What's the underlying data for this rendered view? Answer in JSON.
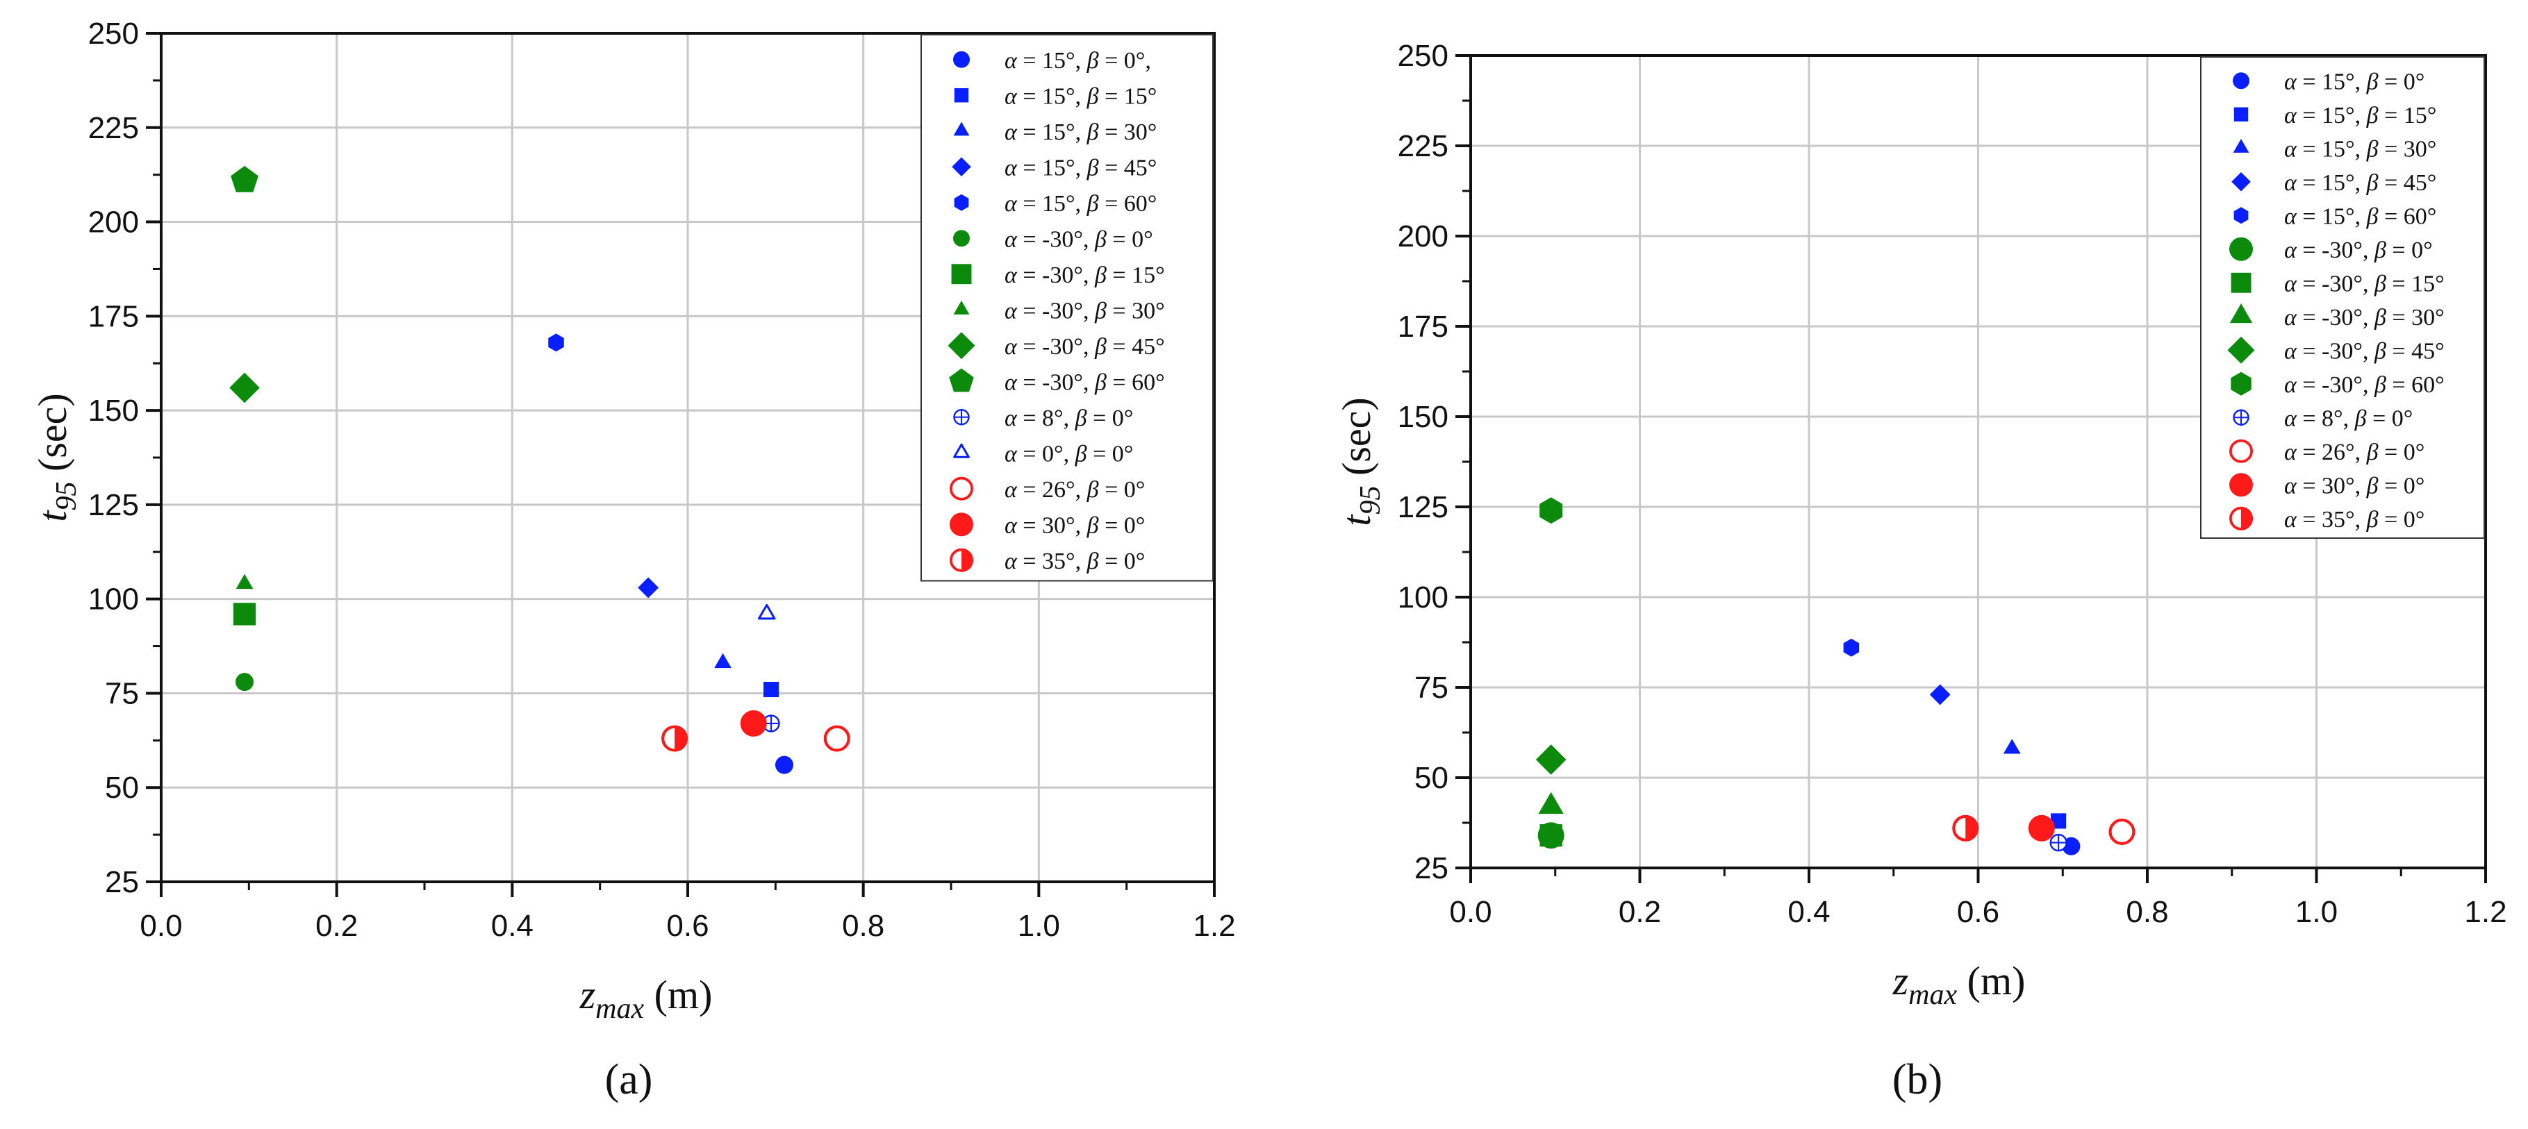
{
  "colors": {
    "blue": "#0a1fff",
    "green": "#0b8a0b",
    "red": "#ff1a1a",
    "grid": "#c8c8c8",
    "axis": "#111111"
  },
  "chart_data": [
    {
      "panel_label": "(a)",
      "type": "scatter",
      "title": "",
      "xlabel": {
        "main": "z",
        "sub": "max",
        "unit": " (m)"
      },
      "ylabel": {
        "main": "t",
        "sub": "95",
        "unit": " (sec)"
      },
      "xlim": [
        0,
        1.2
      ],
      "ylim": [
        25,
        250
      ],
      "xticks": [
        "0.0",
        "0.2",
        "0.4",
        "0.6",
        "0.8",
        "1.0",
        "1.2"
      ],
      "yticks": [
        "25",
        "50",
        "75",
        "100",
        "125",
        "150",
        "175",
        "200",
        "225",
        "250"
      ],
      "grid": true,
      "legend_position": "top-right",
      "series": [
        {
          "name": "α = 15°, β = 0°,",
          "color": "blue",
          "marker": "circle",
          "big": false,
          "x": [
            0.71
          ],
          "y": [
            56
          ]
        },
        {
          "name": "α = 15°, β = 15°",
          "color": "blue",
          "marker": "square",
          "big": false,
          "x": [
            0.695
          ],
          "y": [
            76
          ]
        },
        {
          "name": "α = 15°, β = 30°",
          "color": "blue",
          "marker": "triangle",
          "big": false,
          "x": [
            0.64
          ],
          "y": [
            83
          ]
        },
        {
          "name": "α = 15°, β = 45°",
          "color": "blue",
          "marker": "diamond",
          "big": false,
          "x": [
            0.555
          ],
          "y": [
            103
          ]
        },
        {
          "name": "α = 15°, β = 60°",
          "color": "blue",
          "marker": "hexagon",
          "big": false,
          "x": [
            0.45
          ],
          "y": [
            168
          ]
        },
        {
          "name": "α = -30°, β = 0°",
          "color": "green",
          "marker": "circle",
          "big": false,
          "x": [
            0.095
          ],
          "y": [
            78
          ]
        },
        {
          "name": "α = -30°, β = 15°",
          "color": "green",
          "marker": "square",
          "big": true,
          "x": [
            0.095
          ],
          "y": [
            96
          ]
        },
        {
          "name": "α = -30°, β = 30°",
          "color": "green",
          "marker": "triangle",
          "big": false,
          "x": [
            0.095
          ],
          "y": [
            104
          ]
        },
        {
          "name": "α = -30°, β = 45°",
          "color": "green",
          "marker": "diamond",
          "big": true,
          "x": [
            0.095
          ],
          "y": [
            156
          ]
        },
        {
          "name": "α = -30°, β = 60°",
          "color": "green",
          "marker": "pentagon",
          "big": true,
          "x": [
            0.095
          ],
          "y": [
            211
          ]
        },
        {
          "name": "α = 8°, β = 0°",
          "color": "blue",
          "marker": "circle-plus",
          "big": false,
          "x": [
            0.695
          ],
          "y": [
            67
          ]
        },
        {
          "name": "α = 0°, β = 0°",
          "color": "blue",
          "marker": "triangle-open",
          "big": false,
          "x": [
            0.69
          ],
          "y": [
            96
          ]
        },
        {
          "name": "α = 26°, β = 0°",
          "color": "red",
          "marker": "circle-open",
          "big": true,
          "x": [
            0.77
          ],
          "y": [
            63
          ]
        },
        {
          "name": "α = 30°, β = 0°",
          "color": "red",
          "marker": "circle",
          "big": true,
          "x": [
            0.675
          ],
          "y": [
            67
          ]
        },
        {
          "name": "α = 35°, β = 0°",
          "color": "red",
          "marker": "circle-half",
          "big": true,
          "x": [
            0.585
          ],
          "y": [
            63
          ]
        }
      ]
    },
    {
      "panel_label": "(b)",
      "type": "scatter",
      "title": "",
      "xlabel": {
        "main": "z",
        "sub": "max",
        "unit": " (m)"
      },
      "ylabel": {
        "main": "t",
        "sub": "95",
        "unit": " (sec)"
      },
      "xlim": [
        0,
        1.2
      ],
      "ylim": [
        25,
        250
      ],
      "xticks": [
        "0.0",
        "0.2",
        "0.4",
        "0.6",
        "0.8",
        "1.0",
        "1.2"
      ],
      "yticks": [
        "25",
        "50",
        "75",
        "100",
        "125",
        "150",
        "175",
        "200",
        "225",
        "250"
      ],
      "grid": true,
      "legend_position": "top-right",
      "series": [
        {
          "name": "α = 15°, β = 0°",
          "color": "blue",
          "marker": "circle",
          "big": false,
          "x": [
            0.71
          ],
          "y": [
            31
          ]
        },
        {
          "name": "α = 15°, β = 15°",
          "color": "blue",
          "marker": "square",
          "big": false,
          "x": [
            0.695
          ],
          "y": [
            38
          ]
        },
        {
          "name": "α = 15°, β = 30°",
          "color": "blue",
          "marker": "triangle",
          "big": false,
          "x": [
            0.64
          ],
          "y": [
            58
          ]
        },
        {
          "name": "α = 15°, β = 45°",
          "color": "blue",
          "marker": "diamond",
          "big": false,
          "x": [
            0.555
          ],
          "y": [
            73
          ]
        },
        {
          "name": "α = 15°, β = 60°",
          "color": "blue",
          "marker": "hexagon",
          "big": false,
          "x": [
            0.45
          ],
          "y": [
            86
          ]
        },
        {
          "name": "α = -30°, β = 0°",
          "color": "green",
          "marker": "circle",
          "big": true,
          "x": [
            0.095
          ],
          "y": [
            34
          ]
        },
        {
          "name": "α = -30°, β = 15°",
          "color": "green",
          "marker": "square",
          "big": true,
          "x": [
            0.095
          ],
          "y": [
            34
          ]
        },
        {
          "name": "α = -30°, β = 30°",
          "color": "green",
          "marker": "triangle",
          "big": true,
          "x": [
            0.095
          ],
          "y": [
            42
          ]
        },
        {
          "name": "α = -30°, β = 45°",
          "color": "green",
          "marker": "diamond",
          "big": true,
          "x": [
            0.095
          ],
          "y": [
            55
          ]
        },
        {
          "name": "α = -30°, β = 60°",
          "color": "green",
          "marker": "hexagon",
          "big": true,
          "x": [
            0.095
          ],
          "y": [
            124
          ]
        },
        {
          "name": "α = 8°, β = 0°",
          "color": "blue",
          "marker": "circle-plus",
          "big": false,
          "x": [
            0.695
          ],
          "y": [
            32
          ]
        },
        {
          "name": "α = 26°, β = 0°",
          "color": "red",
          "marker": "circle-open",
          "big": true,
          "x": [
            0.77
          ],
          "y": [
            35
          ]
        },
        {
          "name": "α = 30°, β = 0°",
          "color": "red",
          "marker": "circle",
          "big": true,
          "x": [
            0.675
          ],
          "y": [
            36
          ]
        },
        {
          "name": "α = 35°, β = 0°",
          "color": "red",
          "marker": "circle-half",
          "big": true,
          "x": [
            0.585
          ],
          "y": [
            36
          ]
        }
      ]
    }
  ]
}
